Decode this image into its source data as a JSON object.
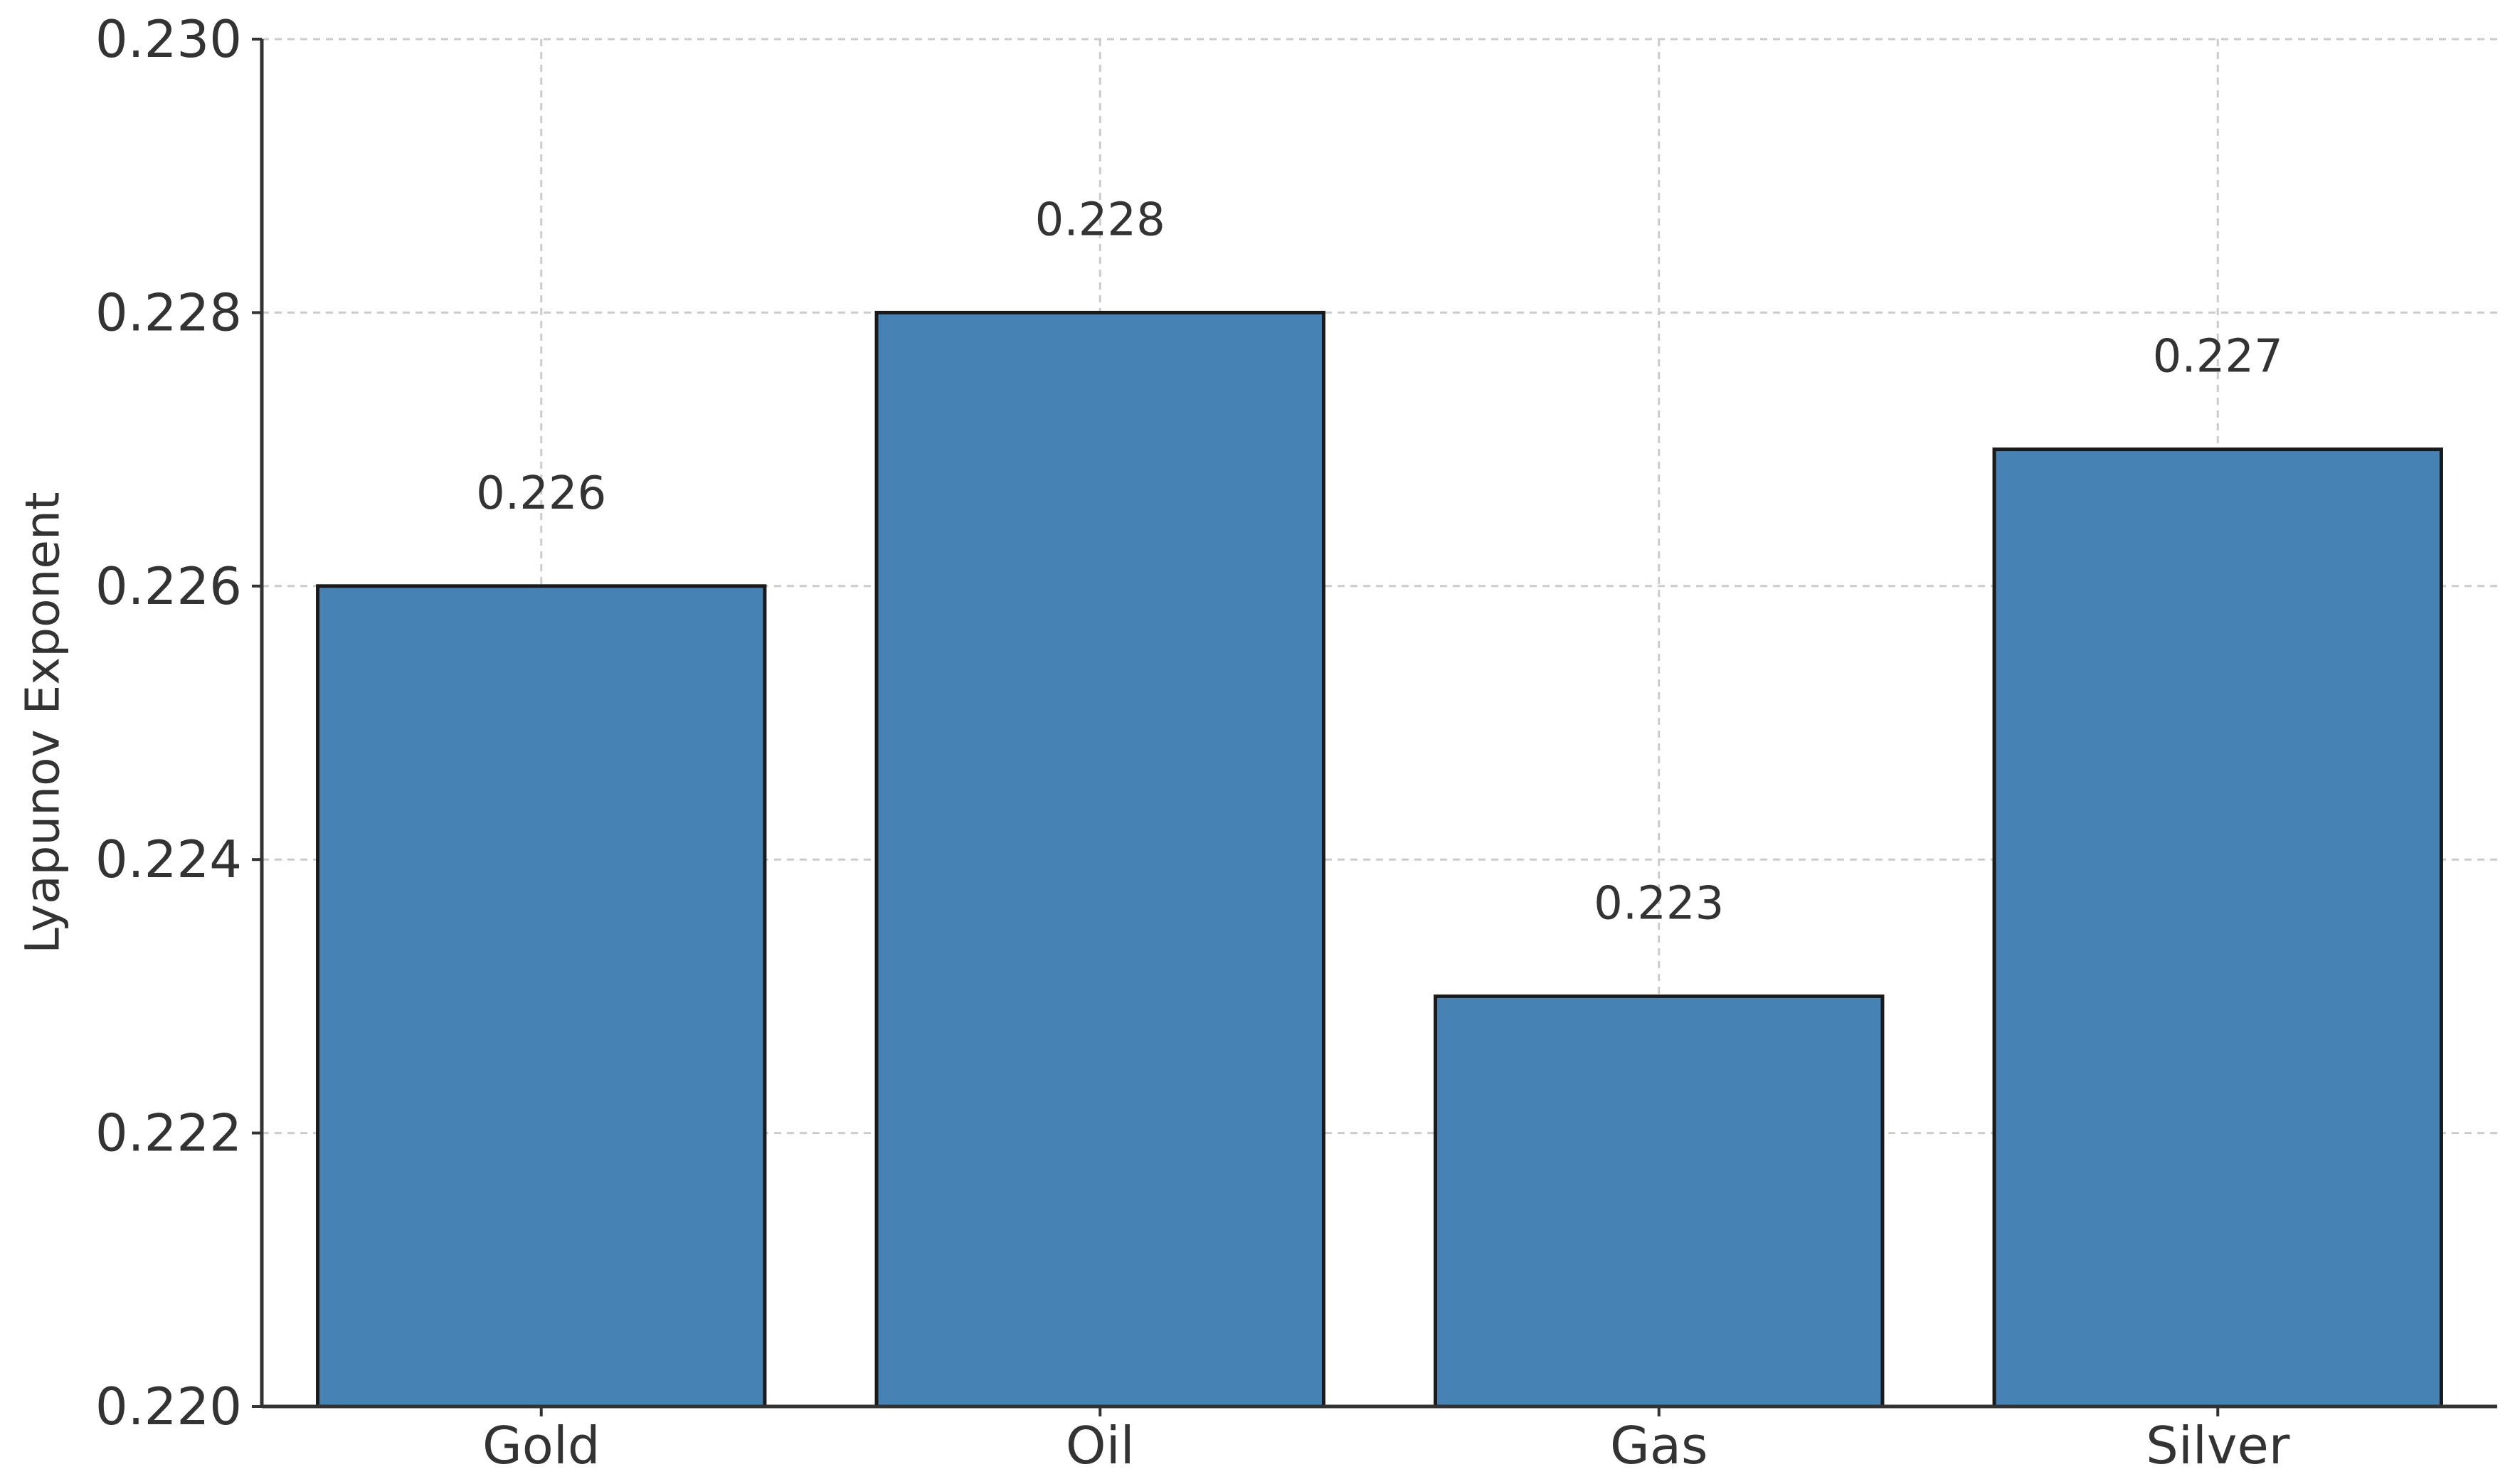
{
  "chart_data": {
    "type": "bar",
    "title": "",
    "xlabel": "",
    "ylabel": "Lyapunov Exponent",
    "categories": [
      "Gold",
      "Oil",
      "Gas",
      "Silver"
    ],
    "values": [
      0.226,
      0.228,
      0.223,
      0.227
    ],
    "data_labels": [
      "0.226",
      "0.228",
      "0.223",
      "0.227"
    ],
    "ylim": [
      0.22,
      0.23
    ],
    "yticks": [
      "0.220",
      "0.222",
      "0.224",
      "0.226",
      "0.228",
      "0.230"
    ],
    "grid": true,
    "legend": "none",
    "bar_color": "#4682b4",
    "bar_edge_color": "#1a1a1a",
    "grid_color": "#cccccc"
  }
}
